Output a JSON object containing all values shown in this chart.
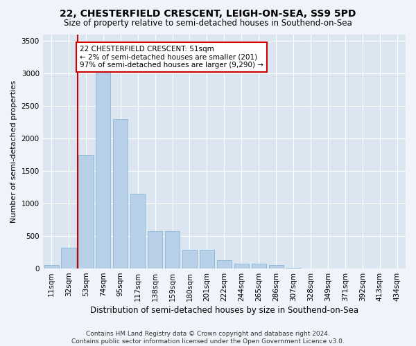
{
  "title1": "22, CHESTERFIELD CRESCENT, LEIGH-ON-SEA, SS9 5PD",
  "title2": "Size of property relative to semi-detached houses in Southend-on-Sea",
  "xlabel": "Distribution of semi-detached houses by size in Southend-on-Sea",
  "ylabel": "Number of semi-detached properties",
  "categories": [
    "11sqm",
    "32sqm",
    "53sqm",
    "74sqm",
    "95sqm",
    "117sqm",
    "138sqm",
    "159sqm",
    "180sqm",
    "201sqm",
    "222sqm",
    "244sqm",
    "265sqm",
    "286sqm",
    "307sqm",
    "328sqm",
    "349sqm",
    "371sqm",
    "392sqm",
    "413sqm",
    "434sqm"
  ],
  "values": [
    50,
    320,
    1750,
    3050,
    2300,
    1150,
    580,
    580,
    290,
    290,
    130,
    80,
    70,
    50,
    10,
    5,
    3,
    2,
    1,
    0,
    0
  ],
  "bar_color": "#b8d0e8",
  "bar_edge_color": "#7aafd4",
  "redline_index": 2,
  "annotation_text": "22 CHESTERFIELD CRESCENT: 51sqm\n← 2% of semi-detached houses are smaller (201)\n97% of semi-detached houses are larger (9,290) →",
  "annotation_box_facecolor": "#ffffff",
  "annotation_box_edgecolor": "#cc0000",
  "footer1": "Contains HM Land Registry data © Crown copyright and database right 2024.",
  "footer2": "Contains public sector information licensed under the Open Government Licence v3.0.",
  "ylim": [
    0,
    3600
  ],
  "yticks": [
    0,
    500,
    1000,
    1500,
    2000,
    2500,
    3000,
    3500
  ],
  "fig_facecolor": "#f0f4fa",
  "axes_facecolor": "#dce6f0",
  "grid_color": "#ffffff",
  "redline_color": "#cc0000",
  "title1_fontsize": 10,
  "title2_fontsize": 8.5,
  "xlabel_fontsize": 8.5,
  "ylabel_fontsize": 8,
  "tick_fontsize": 7.5,
  "footer_fontsize": 6.5,
  "annotation_fontsize": 7.5
}
